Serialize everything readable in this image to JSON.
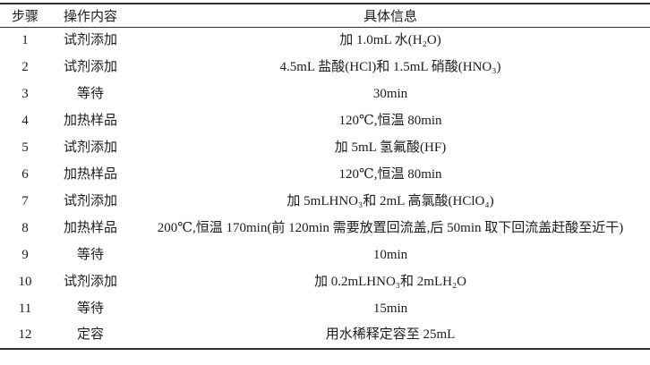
{
  "table": {
    "columns": [
      {
        "label": "步骤"
      },
      {
        "label": "操作内容"
      },
      {
        "label": "具体信息"
      }
    ],
    "rows": [
      [
        "1",
        "试剂添加",
        "加 1.0mL 水(H₂O)"
      ],
      [
        "2",
        "试剂添加",
        "4.5mL 盐酸(HCl)和 1.5mL 硝酸(HNO₃)"
      ],
      [
        "3",
        "等待",
        "30min"
      ],
      [
        "4",
        "加热样品",
        "120℃,恒温 80min"
      ],
      [
        "5",
        "试剂添加",
        "加 5mL 氢氟酸(HF)"
      ],
      [
        "6",
        "加热样品",
        "120℃,恒温 80min"
      ],
      [
        "7",
        "试剂添加",
        "加 5mLHNO₃和 2mL 高氯酸(HClO₄)"
      ],
      [
        "8",
        "加热样品",
        "200℃,恒温 170min(前 120min 需要放置回流盖,后 50min 取下回流盖赶酸至近干)"
      ],
      [
        "9",
        "等待",
        "10min"
      ],
      [
        "10",
        "试剂添加",
        "加 0.2mLHNO₃和 2mLH₂O"
      ],
      [
        "11",
        "等待",
        "15min"
      ],
      [
        "12",
        "定容",
        "用水稀释定容至 25mL"
      ]
    ],
    "colors": {
      "rule": "#2e2e2e",
      "text": "#1c1c1c",
      "background": "#ffffff"
    }
  }
}
